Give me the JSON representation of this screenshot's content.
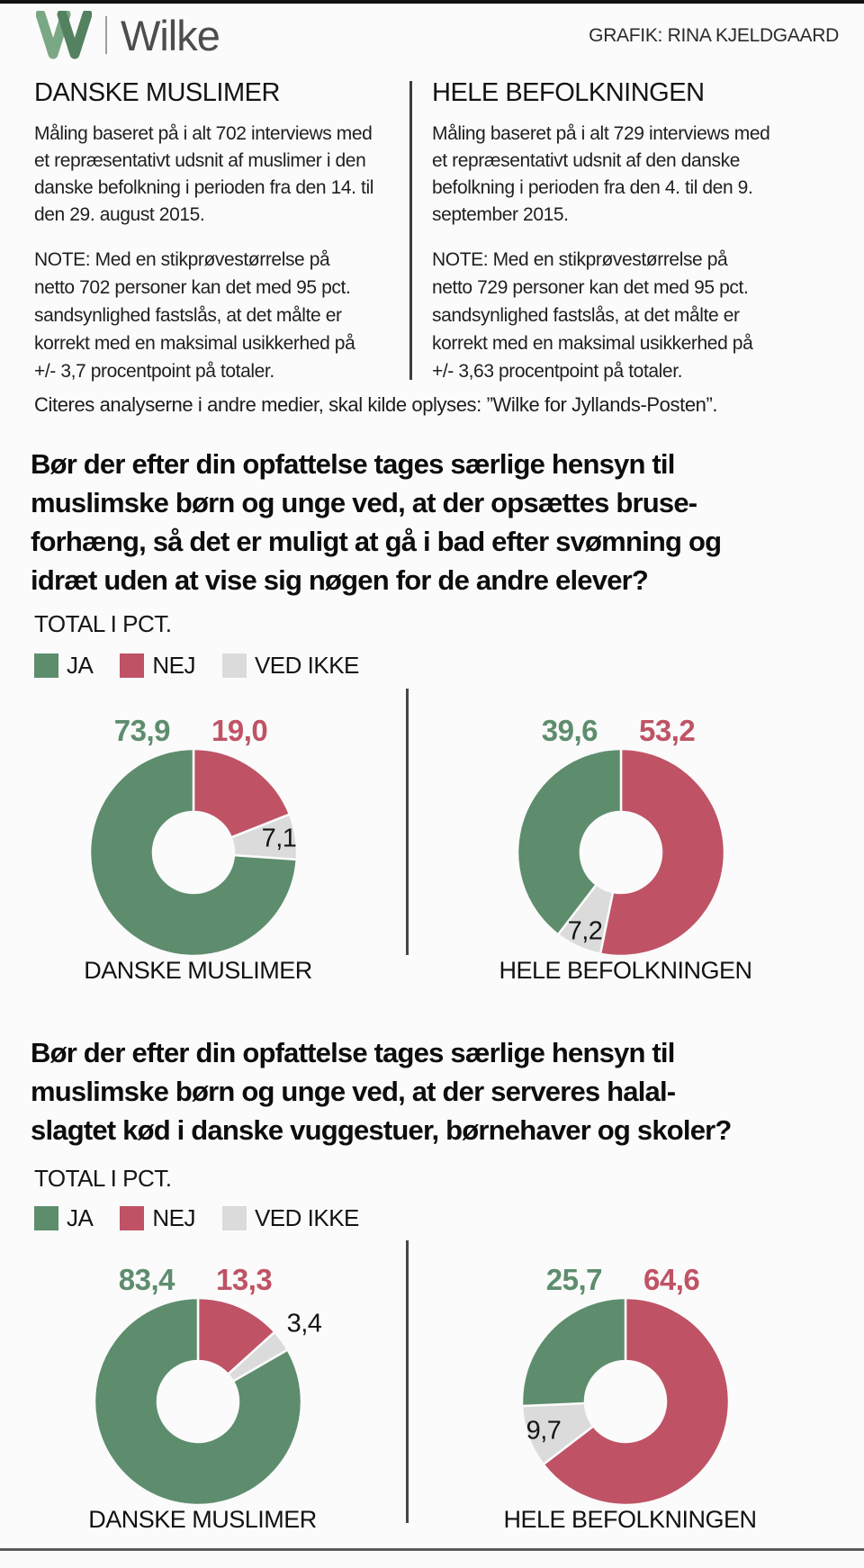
{
  "header": {
    "logo": {
      "mark": "W",
      "name": "Wilke"
    },
    "credit": "GRAFIK: RINA KJELDGAARD"
  },
  "methodology": {
    "left": {
      "title": "DANSKE MUSLIMER",
      "body_lines": [
        "Måling baseret på i alt 702 interviews med",
        "et repræsentativt udsnit af muslimer i den",
        "danske befolkning i perioden fra den 14. til",
        "den 29. august 2015."
      ],
      "note_lines": [
        "NOTE: Med en stikprøvestørrelse på",
        "netto 702 personer kan det med 95 pct.",
        "sandsynlighed fastslås, at det målte er",
        "korrekt med en maksimal usikkerhed på",
        "+/- 3,7 procentpoint på totaler."
      ]
    },
    "right": {
      "title": "HELE BEFOLKNINGEN",
      "body_lines": [
        "Måling baseret på i alt 729 interviews med",
        "et repræsentativt udsnit af den danske",
        "befolkning i perioden fra den 4. til den 9.",
        "september 2015."
      ],
      "note_lines": [
        "NOTE: Med en stikprøvestørrelse på",
        "netto 729 personer kan det med 95 pct.",
        "sandsynlighed fastslås, at det målte er",
        "korrekt med en maksimal usikkerhed på",
        "+/- 3,63 procentpoint på totaler."
      ]
    }
  },
  "citation": "Citeres analyserne i andre medier, skal kilde oplyses: ”Wilke for Jyllands-Posten”.",
  "legend": {
    "items": [
      {
        "label": "JA",
        "color": "#5e8d6e"
      },
      {
        "label": "NEJ",
        "color": "#bf5365"
      },
      {
        "label": "VED IKKE",
        "color": "#dbdbdb"
      }
    ]
  },
  "questions": [
    {
      "text_lines": [
        "Bør der efter din opfattelse tages særlige hensyn til",
        "muslimske børn og unge ved, at der opsættes bruse-",
        "forhæng, så det er muligt at gå i bad efter svømning og",
        "idræt uden at vise sig nøgen for de andre elever?"
      ],
      "total_label": "TOTAL I PCT."
    },
    {
      "text_lines": [
        "Bør der efter din opfattelse tages særlige hensyn til",
        "muslimske børn og unge ved, at der serveres halal-",
        "slagtet kød i danske vuggestuer, børnehaver og skoler?"
      ],
      "total_label": "TOTAL I PCT."
    }
  ],
  "chart_data": [
    {
      "type": "pie",
      "subtype": "donut",
      "question_index": 0,
      "title": "DANSKE MUSLIMER",
      "categories": [
        "JA",
        "NEJ",
        "VED IKKE"
      ],
      "values": [
        73.9,
        19.0,
        7.1
      ],
      "value_labels": [
        "73,9",
        "19,0",
        "7,1"
      ],
      "colors": [
        "#5e8d6e",
        "#bf5365",
        "#dbdbdb"
      ],
      "start_angle_deg": 0,
      "direction": "clockwise",
      "draw_order": [
        "NEJ",
        "VED IKKE",
        "JA"
      ]
    },
    {
      "type": "pie",
      "subtype": "donut",
      "question_index": 0,
      "title": "HELE BEFOLKNINGEN",
      "categories": [
        "JA",
        "NEJ",
        "VED IKKE"
      ],
      "values": [
        39.6,
        53.2,
        7.2
      ],
      "value_labels": [
        "39,6",
        "53,2",
        "7,2"
      ],
      "colors": [
        "#5e8d6e",
        "#bf5365",
        "#dbdbdb"
      ],
      "start_angle_deg": 0,
      "direction": "clockwise",
      "draw_order": [
        "NEJ",
        "VED IKKE",
        "JA"
      ]
    },
    {
      "type": "pie",
      "subtype": "donut",
      "question_index": 1,
      "title": "DANSKE MUSLIMER",
      "categories": [
        "JA",
        "NEJ",
        "VED IKKE"
      ],
      "values": [
        83.4,
        13.3,
        3.4
      ],
      "value_labels": [
        "83,4",
        "13,3",
        "3,4"
      ],
      "colors": [
        "#5e8d6e",
        "#bf5365",
        "#dbdbdb"
      ],
      "start_angle_deg": 0,
      "direction": "clockwise",
      "draw_order": [
        "NEJ",
        "VED IKKE",
        "JA"
      ]
    },
    {
      "type": "pie",
      "subtype": "donut",
      "question_index": 1,
      "title": "HELE BEFOLKNINGEN",
      "categories": [
        "JA",
        "NEJ",
        "VED IKKE"
      ],
      "values": [
        25.7,
        64.6,
        9.7
      ],
      "value_labels": [
        "25,7",
        "64,6",
        "9,7"
      ],
      "colors": [
        "#5e8d6e",
        "#bf5365",
        "#dbdbdb"
      ],
      "start_angle_deg": 0,
      "direction": "clockwise",
      "draw_order": [
        "NEJ",
        "VED IKKE",
        "JA"
      ]
    }
  ]
}
